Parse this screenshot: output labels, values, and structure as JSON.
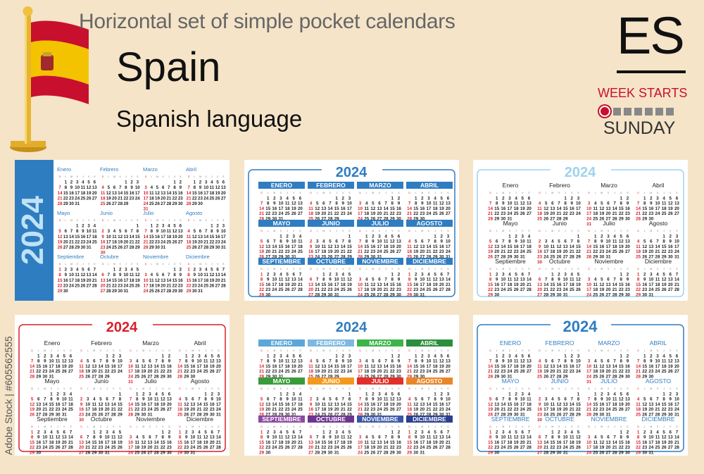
{
  "header": {
    "title": "Horizontal set of simple pocket calendars",
    "country": "Spain",
    "language": "Spanish language",
    "code": "ES",
    "week_starts_label": "WEEK STARTS",
    "week_start_day": "SUNDAY"
  },
  "watermark": {
    "text": "Adobe Stock | #605562555"
  },
  "year": "2024",
  "months_title": [
    "Enero",
    "Febrero",
    "Marzo",
    "Abril",
    "Mayo",
    "Junio",
    "Julio",
    "Agosto",
    "Septiembre",
    "Octubre",
    "Noviembre",
    "Diciembre"
  ],
  "months_upper": [
    "ENERO",
    "FEBRERO",
    "MARZO",
    "ABRIL",
    "MAYO",
    "JUNIO",
    "JULIO",
    "AGOSTO",
    "SEPTIEMBRE",
    "OCTUBRE",
    "NOVIEMBRE",
    "DICIEMBRE"
  ],
  "weekday_letters": [
    "D",
    "L",
    "M",
    "X",
    "J",
    "V",
    "S"
  ],
  "month_lengths": [
    31,
    29,
    31,
    30,
    31,
    30,
    31,
    31,
    30,
    31,
    30,
    31
  ],
  "month_start_weekday": [
    1,
    4,
    5,
    1,
    3,
    6,
    1,
    4,
    0,
    2,
    5,
    0
  ],
  "colors": {
    "accent_blue": "#2f7dc1",
    "light_blue": "#9ed3ee",
    "red": "#d7202b",
    "flag_red": "#c8102e",
    "flag_yellow": "#f3c300",
    "rainbow": [
      "#5ba8d8",
      "#7db8e0",
      "#3cb44a",
      "#2b8e3c",
      "#3a9b3a",
      "#f39a1e",
      "#e1302b",
      "#e8862c",
      "#8b4aa0",
      "#6d3590",
      "#3b57a5",
      "#2a3f8e"
    ]
  }
}
